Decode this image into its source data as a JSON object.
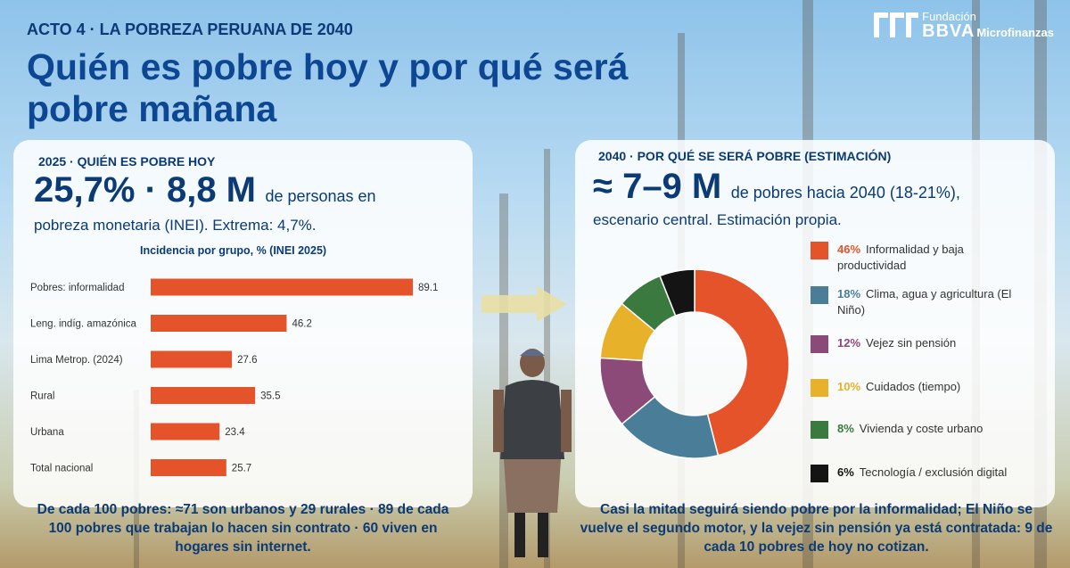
{
  "header": {
    "kicker": "ACTO 4 · LA POBREZA PERUANA DE 2040",
    "title": "Quién es pobre hoy y por qué será pobre mañana",
    "logo_line1": "Fundación",
    "logo_line2": "BBVA",
    "logo_line3": "Microfinanzas"
  },
  "left_panel": {
    "heading": "2025 · QUIÉN ES POBRE HOY",
    "big_number": "25,7% · 8,8 M",
    "big_suffix": "de personas en",
    "sub": "pobreza monetaria (INEI). Extrema: 4,7%.",
    "footer": "De cada 100 pobres: ≈71 son urbanos y 29 rurales · 89 de cada 100 pobres que trabajan lo hacen sin contrato · 60 viven en hogares sin internet."
  },
  "right_panel": {
    "heading": "2040 · POR QUÉ SE SERÁ POBRE (ESTIMACIÓN)",
    "big_number": "≈ 7–9 M",
    "big_suffix": "de pobres hacia 2040 (18-21%),",
    "sub": "escenario central. Estimación propia.",
    "footer": "Casi la mitad seguirá siendo pobre por la informalidad; El Niño se vuelve el segundo motor, y la vejez sin pensión ya está contratada: 9 de cada 10 pobres de hoy no cotizan."
  },
  "chart_data": [
    {
      "type": "bar",
      "orientation": "horizontal",
      "title": "Incidencia por grupo, % (INEI 2025)",
      "categories": [
        "Pobres: informalidad",
        "Leng. indíg. amazónica",
        "Lima Metrop. (2024)",
        "Rural",
        "Urbana",
        "Total nacional"
      ],
      "values": [
        89.1,
        46.2,
        27.6,
        35.5,
        23.4,
        25.7
      ],
      "value_labels": [
        "89.1",
        "46.2",
        "27.6",
        "35.5",
        "23.4",
        "25.7"
      ],
      "xlim": [
        0,
        100
      ],
      "color": "#e4532a"
    },
    {
      "type": "pie",
      "variant": "donut",
      "slices": [
        {
          "pct_label": "46%",
          "value": 46,
          "label": "Informalidad y baja productividad",
          "color": "#e4532a"
        },
        {
          "pct_label": "18%",
          "value": 18,
          "label": "Clima, agua y agricultura (El Niño)",
          "color": "#4a7e98"
        },
        {
          "pct_label": "12%",
          "value": 12,
          "label": "Vejez sin pensión",
          "color": "#8b4a78"
        },
        {
          "pct_label": "10%",
          "value": 10,
          "label": "Cuidados (tiempo)",
          "color": "#e8b12a"
        },
        {
          "pct_label": "8%",
          "value": 8,
          "label": "Vivienda y coste urbano",
          "color": "#3a7a3e"
        },
        {
          "pct_label": "6%",
          "value": 6,
          "label": "Tecnología / exclusión digital",
          "color": "#141414"
        }
      ]
    }
  ],
  "colors": {
    "title_blue": "#0d4793",
    "bar_orange": "#e4532a"
  }
}
